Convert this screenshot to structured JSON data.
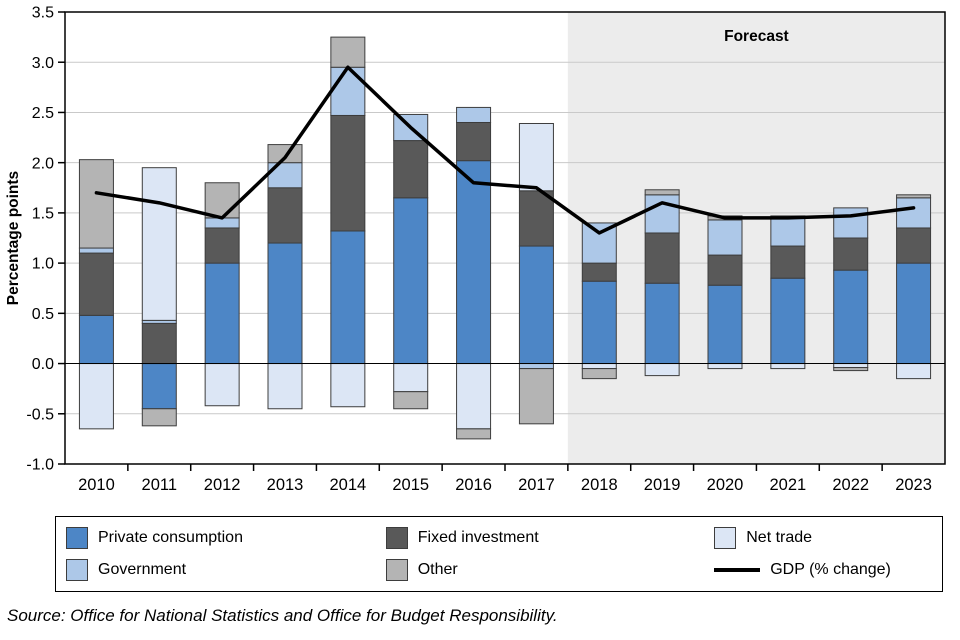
{
  "chart_data": {
    "type": "bar",
    "stacked": true,
    "title": "",
    "xlabel": "",
    "ylabel": "Percentage points",
    "ylim": [
      -1.0,
      3.5
    ],
    "ytick_step": 0.5,
    "grid": true,
    "categories": [
      "2010",
      "2011",
      "2012",
      "2013",
      "2014",
      "2015",
      "2016",
      "2017",
      "2018",
      "2019",
      "2020",
      "2021",
      "2022",
      "2023"
    ],
    "series": [
      {
        "name": "Private consumption",
        "color": "#4d86c6",
        "values": [
          0.48,
          -0.45,
          1.0,
          1.2,
          1.32,
          1.65,
          2.02,
          1.17,
          0.82,
          0.8,
          0.78,
          0.85,
          0.93,
          1.0
        ]
      },
      {
        "name": "Fixed investment",
        "color": "#595959",
        "values": [
          0.62,
          0.4,
          0.35,
          0.55,
          1.15,
          0.57,
          0.38,
          0.55,
          0.18,
          0.5,
          0.3,
          0.32,
          0.32,
          0.35
        ]
      },
      {
        "name": "Government",
        "color": "#adc8e8",
        "values": [
          0.05,
          0.03,
          0.1,
          0.25,
          0.48,
          0.26,
          0.15,
          -0.05,
          0.4,
          0.38,
          0.35,
          0.28,
          0.3,
          0.3
        ]
      },
      {
        "name": "Net trade",
        "color": "#dce6f5",
        "values": [
          -0.65,
          1.52,
          -0.42,
          -0.45,
          -0.43,
          -0.28,
          -0.65,
          0.67,
          -0.05,
          -0.12,
          -0.05,
          -0.05,
          -0.04,
          -0.15
        ]
      },
      {
        "name": "Other",
        "color": "#b4b4b4",
        "values": [
          0.88,
          -0.17,
          0.35,
          0.18,
          0.3,
          -0.17,
          -0.1,
          -0.55,
          -0.1,
          0.05,
          0.04,
          0.02,
          -0.03,
          0.03
        ]
      }
    ],
    "line_series": {
      "name": "GDP (% change)",
      "color": "#000000",
      "values": [
        1.7,
        1.6,
        1.45,
        2.05,
        2.95,
        2.35,
        1.8,
        1.75,
        1.3,
        1.6,
        1.45,
        1.45,
        1.47,
        1.55
      ]
    },
    "forecast": {
      "label": "Forecast",
      "start_category": "2018",
      "background": "#ececec"
    },
    "legend": [
      {
        "label": "Private consumption",
        "color": "#4d86c6",
        "type": "box"
      },
      {
        "label": "Fixed investment",
        "color": "#595959",
        "type": "box"
      },
      {
        "label": "Net trade",
        "color": "#dce6f5",
        "type": "box"
      },
      {
        "label": "Government",
        "color": "#adc8e8",
        "type": "box"
      },
      {
        "label": "Other",
        "color": "#b4b4b4",
        "type": "box"
      },
      {
        "label": "GDP (% change)",
        "color": "#000000",
        "type": "line"
      }
    ],
    "legend_position": "bottom",
    "bar_outline_color": "#3d3d3d",
    "gridline_color": "#c9c9c9"
  },
  "source_note": "Source: Office for National Statistics and Office for Budget Responsibility."
}
